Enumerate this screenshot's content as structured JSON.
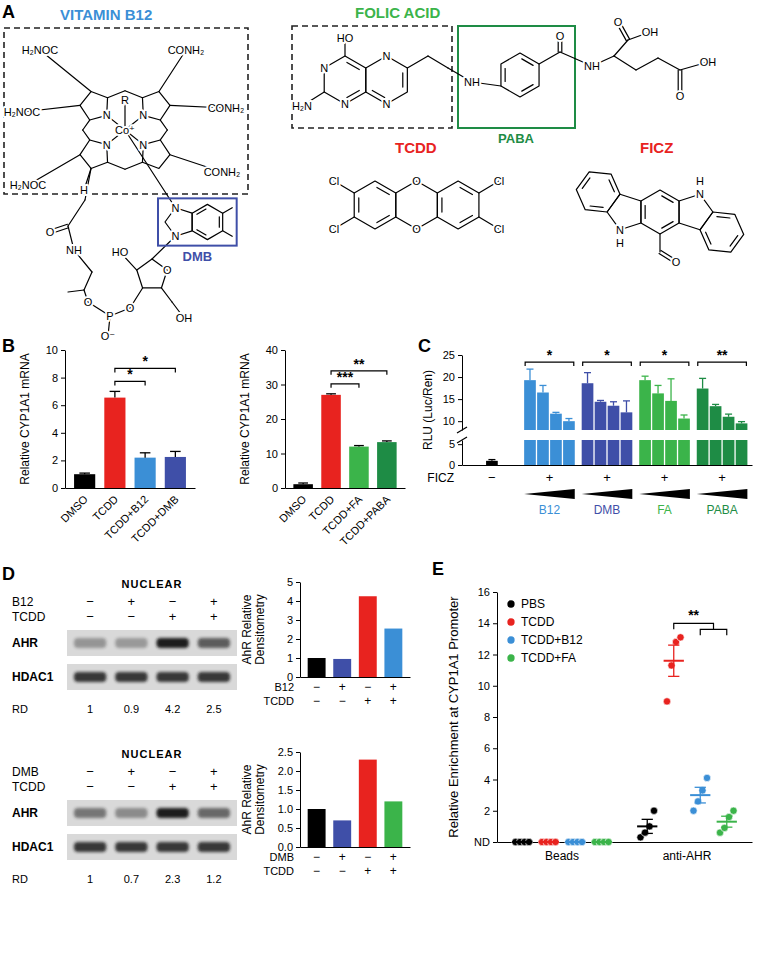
{
  "panel_a": {
    "panel_label": "A",
    "structures": [
      {
        "name": "VITAMIN B12",
        "color": "#3b8fd6",
        "atom_labels": [
          "H₂NOC",
          "CONH₂",
          "H₂NOC",
          "CONH₂",
          "H₂NOC",
          "CONH₂",
          "R",
          "Co⁺",
          "N",
          "N",
          "N",
          "N",
          "H",
          "N",
          "N",
          "O",
          "NH",
          "O",
          "HO",
          "O",
          "P",
          "O",
          "O⁻",
          "OH"
        ],
        "group": {
          "label": "DMB",
          "color": "#3f4fa8"
        }
      },
      {
        "name": "FOLIC ACID",
        "color": "#3bb44a",
        "atom_labels": [
          "HO",
          "N",
          "N",
          "N",
          "N",
          "H₂N",
          "NH",
          "O",
          "NH",
          "O",
          "OH",
          "O",
          "OH"
        ],
        "group": {
          "label": "PABA",
          "color": "#1e8c45"
        }
      },
      {
        "name": "TCDD",
        "color": "#e8231f",
        "atom_labels": [
          "Cl",
          "Cl",
          "O",
          "O",
          "Cl",
          "Cl"
        ]
      },
      {
        "name": "FICZ",
        "color": "#e8231f",
        "atom_labels": [
          "N",
          "H",
          "N",
          "H",
          "O"
        ]
      }
    ]
  },
  "panel_d": {
    "panel_label": "D",
    "blots": [
      {
        "header": "NUCLEAR",
        "rows": [
          {
            "label": "B12",
            "marks": [
              "−",
              "+",
              "−",
              "+"
            ]
          },
          {
            "label": "TCDD",
            "marks": [
              "−",
              "−",
              "+",
              "+"
            ]
          }
        ],
        "bands": [
          "AHR",
          "HDAC1"
        ],
        "rd_label": "RD",
        "rd": [
          1,
          0.9,
          4.2,
          2.5
        ]
      },
      {
        "header": "NUCLEAR",
        "rows": [
          {
            "label": "DMB",
            "marks": [
              "−",
              "+",
              "−",
              "+"
            ]
          },
          {
            "label": "TCDD",
            "marks": [
              "−",
              "−",
              "+",
              "+"
            ]
          }
        ],
        "bands": [
          "AHR",
          "HDAC1"
        ],
        "rd_label": "RD",
        "rd": [
          1,
          0.7,
          2.3,
          1.2
        ]
      }
    ]
  },
  "chart_data": [
    {
      "panel_label": "B",
      "type": "bar",
      "y_label": "Relative CYP1A1 mRNA",
      "categories": [
        "DMSO",
        "TCDD",
        "TCDD+B12",
        "TCDD+DMB"
      ],
      "values": [
        1,
        6.55,
        2.2,
        2.25
      ],
      "errors": [
        0.08,
        0.45,
        0.35,
        0.4
      ],
      "colors": [
        "#000000",
        "#e8231f",
        "#3b8fd6",
        "#3f4fa8"
      ],
      "ylim": [
        0,
        10
      ],
      "yticks": [
        0,
        2,
        4,
        6,
        8,
        10
      ],
      "significance": [
        {
          "between": [
            "TCDD",
            "TCDD+B12"
          ],
          "label": "*"
        },
        {
          "between": [
            "TCDD",
            "TCDD+DMB"
          ],
          "label": "*"
        }
      ]
    },
    {
      "type": "bar",
      "y_label": "Relative CYP1A1 mRNA",
      "categories": [
        "DMSO",
        "TCDD",
        "TCDD+FA",
        "TCDD+PABA"
      ],
      "values": [
        1.1,
        27,
        12,
        13.3
      ],
      "errors": [
        0.35,
        0.3,
        0.3,
        0.35
      ],
      "colors": [
        "#000000",
        "#e8231f",
        "#3bb44a",
        "#1e8c45"
      ],
      "ylim": [
        0,
        40
      ],
      "yticks": [
        0,
        10,
        20,
        30,
        40
      ],
      "significance": [
        {
          "between": [
            "TCDD",
            "TCDD+FA"
          ],
          "label": "***"
        },
        {
          "between": [
            "TCDD",
            "TCDD+PABA"
          ],
          "label": "**"
        }
      ]
    },
    {
      "panel_label": "C",
      "type": "bar",
      "y_label": "RLU (Luc/Ren)",
      "ylim": [
        0,
        25
      ],
      "yticks": [
        0,
        5,
        10,
        15,
        20,
        25
      ],
      "y_break": [
        6,
        8
      ],
      "x_row": {
        "label": "FICZ",
        "marks": [
          "−",
          "+",
          "+",
          "+",
          "+"
        ]
      },
      "control": {
        "value": 1,
        "error": 0.3,
        "color": "#000000"
      },
      "series": [
        {
          "name": "B12",
          "color": "#3b8fd6",
          "values": [
            19.3,
            16.5,
            11.7,
            10.0
          ],
          "errors": [
            2.5,
            1.6,
            0.3,
            0.6
          ],
          "significance": "*"
        },
        {
          "name": "DMB",
          "color": "#3f4fa8",
          "values": [
            18.6,
            14.4,
            13.5,
            12.0
          ],
          "errors": [
            2.4,
            0.3,
            0.9,
            2.6
          ],
          "significance": "*"
        },
        {
          "name": "FA",
          "color": "#3bb44a",
          "values": [
            19.3,
            16.3,
            14.6,
            10.6
          ],
          "errors": [
            0.9,
            1.8,
            5.0,
            0.8
          ],
          "significance": "*"
        },
        {
          "name": "PABA",
          "color": "#1e8c45",
          "values": [
            17.4,
            13.4,
            11.0,
            9.5
          ],
          "errors": [
            2.3,
            0.4,
            0.6,
            0.4
          ],
          "significance": "**"
        }
      ]
    },
    {
      "type": "bar",
      "y_label": [
        "AhR Relative",
        "Densitometry"
      ],
      "rows": [
        {
          "label": "B12",
          "marks": [
            "−",
            "+",
            "−",
            "+"
          ]
        },
        {
          "label": "TCDD",
          "marks": [
            "−",
            "−",
            "+",
            "+"
          ]
        }
      ],
      "values": [
        1,
        0.95,
        4.25,
        2.55
      ],
      "colors": [
        "#000000",
        "#3f4fa8",
        "#e8231f",
        "#3b8fd6"
      ],
      "ylim": [
        0,
        5
      ],
      "yticks": [
        0,
        1,
        2,
        3,
        4,
        5
      ]
    },
    {
      "type": "bar",
      "y_label": [
        "AhR Relative",
        "Densitometry"
      ],
      "rows": [
        {
          "label": "DMB",
          "marks": [
            "−",
            "+",
            "−",
            "+"
          ]
        },
        {
          "label": "TCDD",
          "marks": [
            "−",
            "−",
            "+",
            "+"
          ]
        }
      ],
      "values": [
        1,
        0.7,
        2.3,
        1.2
      ],
      "colors": [
        "#000000",
        "#3f4fa8",
        "#e8231f",
        "#3bb44a"
      ],
      "ylim": [
        0,
        2.5
      ],
      "yticks": [
        {
          "value": 0,
          "label": "0.0"
        },
        0.5,
        {
          "value": 1,
          "label": "1.0"
        },
        1.5,
        {
          "value": 2,
          "label": "2.0"
        },
        2.5
      ]
    },
    {
      "panel_label": "E",
      "type": "scatter",
      "y_label": "Relative Enrichment at CYP1A1 Promoter",
      "categories": [
        "Beads",
        "anti-AHR"
      ],
      "ylim": [
        0,
        16
      ],
      "yticks": [
        {
          "value": 0,
          "label": "ND"
        },
        2,
        4,
        6,
        8,
        10,
        12,
        14,
        16
      ],
      "legend": "top-left",
      "marker": "circle",
      "series": [
        {
          "name": "PBS",
          "color": "#000000",
          "values": [
            0,
            1.0
          ],
          "errors": [
            0,
            0.45
          ],
          "points": [
            [
              0,
              0,
              0,
              0
            ],
            [
              0.3,
              0.6,
              1.0,
              2.0
            ]
          ]
        },
        {
          "name": "TCDD",
          "color": "#e8231f",
          "values": [
            0,
            11.6
          ],
          "errors": [
            0,
            1.0
          ],
          "points": [
            [
              0,
              0,
              0,
              0
            ],
            [
              9.0,
              11.3,
              12.8,
              13.1
            ]
          ]
        },
        {
          "name": "TCDD+B12",
          "color": "#3b8fd6",
          "values": [
            0,
            3.0
          ],
          "errors": [
            0,
            0.5
          ],
          "points": [
            [
              0,
              0,
              0,
              0
            ],
            [
              2.0,
              2.6,
              3.3,
              4.1
            ]
          ]
        },
        {
          "name": "TCDD+FA",
          "color": "#3bb44a",
          "values": [
            0,
            1.3
          ],
          "errors": [
            0,
            0.35
          ],
          "points": [
            [
              0,
              0,
              0,
              0
            ],
            [
              0.6,
              0.9,
              1.6,
              2.0
            ]
          ]
        }
      ],
      "significance": {
        "label": "**",
        "from": "TCDD",
        "to": [
          "TCDD+B12",
          "TCDD+FA"
        ],
        "category": "anti-AHR"
      }
    }
  ]
}
